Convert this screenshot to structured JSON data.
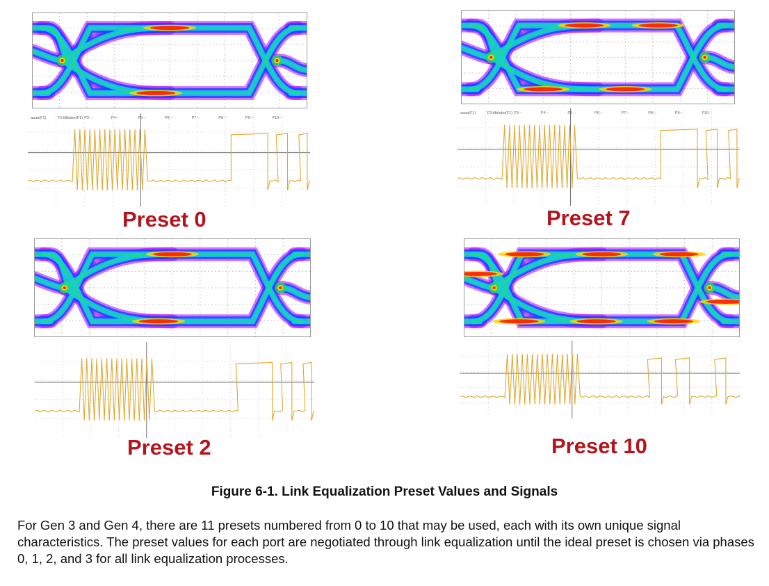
{
  "figure": {
    "panels": [
      {
        "id": "p0",
        "label": "Preset 0",
        "channel_markers": [
          "aaaa(F1)",
          "F2:bfbfabe(F1)",
          "P3---",
          "P4---",
          "P5---",
          "P6---",
          "P7---",
          "P8---",
          "P9---",
          "P10---"
        ]
      },
      {
        "id": "p7",
        "label": "Preset 7",
        "channel_markers": [
          "aaaa(F1)",
          "F2:bfbfabe(F1)",
          "P3---",
          "P4---",
          "P5---",
          "P6---",
          "P7---",
          "P8---",
          "P9---",
          "P10---"
        ]
      },
      {
        "id": "p2",
        "label": "Preset 2"
      },
      {
        "id": "p10",
        "label": "Preset 10"
      }
    ],
    "caption": "Figure 6-1. Link Equalization Preset Values and Signals"
  },
  "body": {
    "paragraph": "For Gen 3 and Gen 4, there are 11 presets numbered from 0 to 10 that may be used, each with its own unique signal characteristics. The preset values for each port are negotiated through link equalization until the ideal preset is chosen via phases 0, 1, 2, and 3 for all link equalization processes."
  },
  "colors": {
    "label_red": "#b4141c",
    "trace_gold": "#e0a830",
    "eye_hot": "#ff1a00",
    "eye_warm": "#ffd400",
    "eye_mid": "#14c8ff",
    "eye_cool": "#2040ff",
    "eye_edge": "#b000ff"
  }
}
